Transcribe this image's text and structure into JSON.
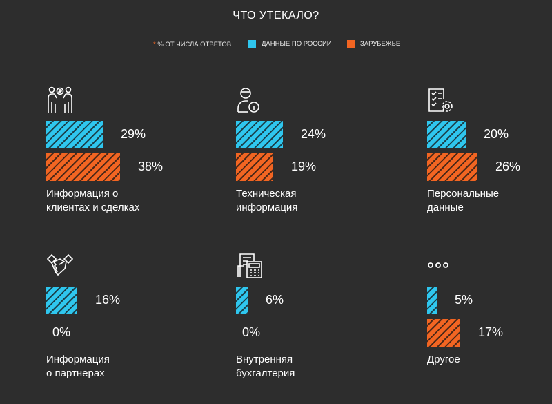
{
  "title": "ЧТО УТЕКАЛО?",
  "legend": {
    "note_star": "*",
    "note": "% ОТ ЧИСЛА ОТВЕТОВ",
    "russia": "ДАННЫЕ ПО РОССИИ",
    "foreign": "ЗАРУБЕЖЬЕ"
  },
  "colors": {
    "russia": "#2fc6ee",
    "foreign": "#f26522",
    "background": "#2d2d2d"
  },
  "chart_data": {
    "type": "bar",
    "categories": [
      "Информация о клиентах и сделках",
      "Техническая информация",
      "Персональные данные",
      "Информация о партнерах",
      "Внутренняя бухгалтерия",
      "Другое"
    ],
    "series": [
      {
        "name": "ДАННЫЕ ПО РОССИИ",
        "values": [
          29,
          24,
          20,
          16,
          6,
          5
        ]
      },
      {
        "name": "ЗАРУБЕЖЬЕ",
        "values": [
          38,
          19,
          26,
          0,
          0,
          17
        ]
      }
    ],
    "labels_russia": [
      "29%",
      "24%",
      "20%",
      "16%",
      "6%",
      "5%"
    ],
    "labels_foreign": [
      "38%",
      "19%",
      "26%",
      "0%",
      "0%",
      "17%"
    ],
    "captions": [
      [
        "Информация о",
        "клиентах и сделках"
      ],
      [
        "Техническая",
        "информация"
      ],
      [
        "Персональные",
        "данные"
      ],
      [
        "Информация",
        "о партнерах"
      ],
      [
        "Внутренняя",
        "бухгалтерия"
      ],
      [
        "Другое"
      ]
    ],
    "icons": [
      "clients-deals-icon",
      "technical-info-icon",
      "personal-data-icon",
      "handshake-icon",
      "accounting-icon",
      "more-dots-icon"
    ]
  }
}
